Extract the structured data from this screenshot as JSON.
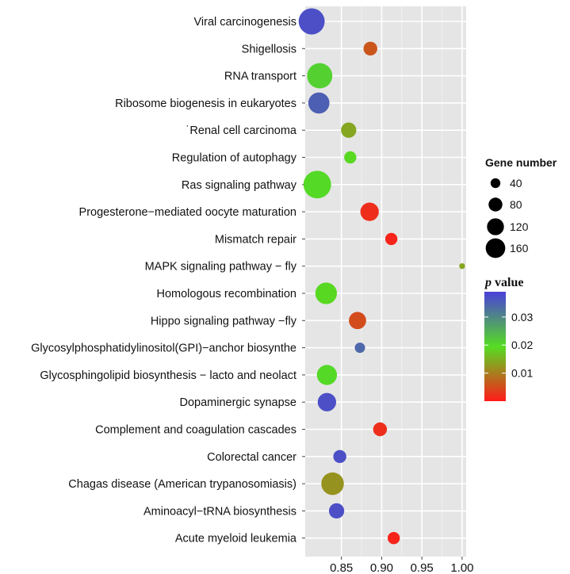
{
  "chart_data": {
    "type": "scatter",
    "xlabel": "",
    "ylabel": "",
    "xlim": [
      0.805,
      1.005
    ],
    "xticks": [
      0.85,
      0.9,
      0.95,
      1.0
    ],
    "xtick_labels": [
      "0.85",
      "0.90",
      "0.95",
      "1.00"
    ],
    "grid": true,
    "points": [
      {
        "category": "Viral carcinogenesis",
        "x": 0.813,
        "gene_number": 160,
        "p_value": 0.037
      },
      {
        "category": "Shigellosis",
        "x": 0.886,
        "gene_number": 45,
        "p_value": 0.006
      },
      {
        "category": "RNA transport",
        "x": 0.823,
        "gene_number": 150,
        "p_value": 0.021
      },
      {
        "category": "Ribosome biogenesis in eukaryotes",
        "x": 0.822,
        "gene_number": 105,
        "p_value": 0.035
      },
      {
        "category": "˙Renal cell carcinoma",
        "x": 0.859,
        "gene_number": 55,
        "p_value": 0.014
      },
      {
        "category": "Regulation of autophagy",
        "x": 0.861,
        "gene_number": 35,
        "p_value": 0.019
      },
      {
        "category": "Ras signaling pathway",
        "x": 0.82,
        "gene_number": 180,
        "p_value": 0.02
      },
      {
        "category": "Progesterone−mediated oocyte maturation",
        "x": 0.885,
        "gene_number": 80,
        "p_value": 0.002
      },
      {
        "category": "Mismatch repair",
        "x": 0.912,
        "gene_number": 35,
        "p_value": 0.001
      },
      {
        "category": "MAPK signaling pathway − fly",
        "x": 1.0,
        "gene_number": 8,
        "p_value": 0.014
      },
      {
        "category": "Homologous recombination",
        "x": 0.831,
        "gene_number": 110,
        "p_value": 0.019
      },
      {
        "category": "Hippo signaling pathway −fly",
        "x": 0.87,
        "gene_number": 70,
        "p_value": 0.005
      },
      {
        "category": "Glycosylphosphatidylinositol(GPI)−anchor biosynthe",
        "x": 0.873,
        "gene_number": 25,
        "p_value": 0.034
      },
      {
        "category": "Glycosphingolipid biosynthesis − lacto and neolact",
        "x": 0.832,
        "gene_number": 95,
        "p_value": 0.02
      },
      {
        "category": "Dopaminergic synapse",
        "x": 0.832,
        "gene_number": 80,
        "p_value": 0.037
      },
      {
        "category": "Complement and coagulation cascades",
        "x": 0.898,
        "gene_number": 45,
        "p_value": 0.002
      },
      {
        "category": "Colorectal cancer",
        "x": 0.848,
        "gene_number": 40,
        "p_value": 0.037
      },
      {
        "category": "Chagas disease (American trypanosomiasis)",
        "x": 0.839,
        "gene_number": 120,
        "p_value": 0.012
      },
      {
        "category": "Aminoacyl−tRNA biosynthesis",
        "x": 0.844,
        "gene_number": 55,
        "p_value": 0.037
      },
      {
        "category": "Acute myeloid leukemia",
        "x": 0.915,
        "gene_number": 35,
        "p_value": 0.001
      }
    ],
    "size_legend": {
      "title": "Gene  number",
      "values": [
        40,
        80,
        120,
        160
      ],
      "labels": [
        "40",
        "80",
        "120",
        "160"
      ]
    },
    "color_legend": {
      "title_symbol": "p",
      "title_text": " value",
      "range": [
        0.0,
        0.039
      ],
      "ticks": [
        0.01,
        0.02,
        0.03
      ],
      "tick_labels": [
        "0.01",
        "0.02",
        "0.03"
      ],
      "colors": [
        "#ff1a1a",
        "#55dd22",
        "#4b3fd9"
      ]
    }
  }
}
